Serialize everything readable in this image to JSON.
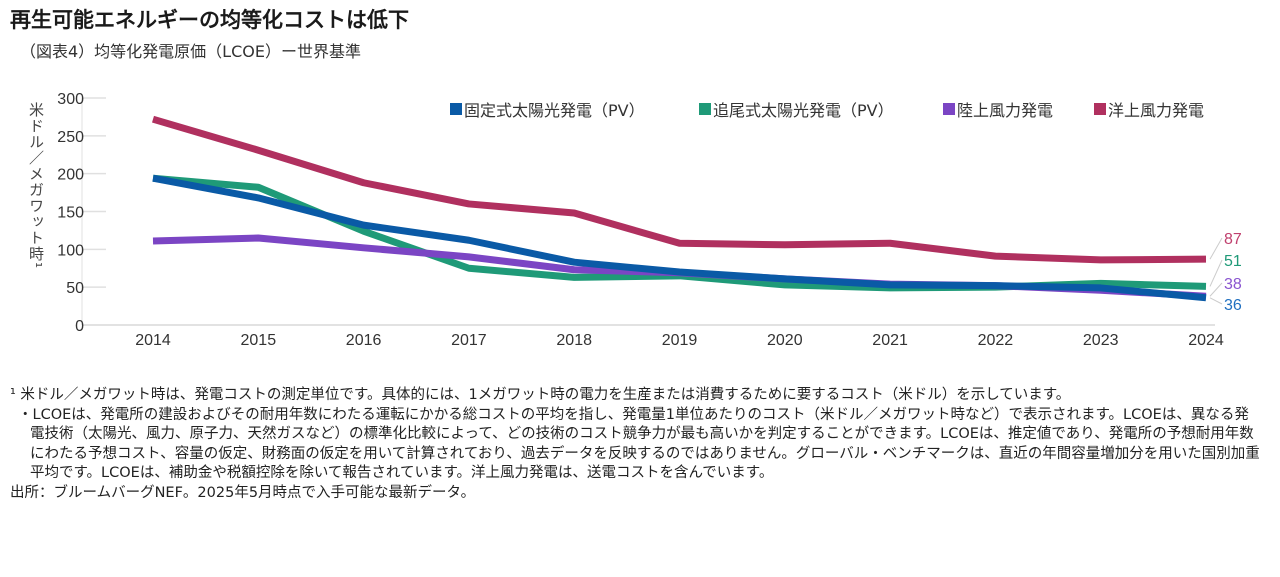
{
  "title": "再生可能エネルギーの均等化コストは低下",
  "subtitle": "（図表4）均等化発電原価（LCOE）ー世界基準",
  "chart_data": {
    "type": "line",
    "title": "",
    "ylabel": "米ドル／メガワット時¹",
    "xlabel": "",
    "ylim": [
      0,
      300
    ],
    "yticks": [
      0,
      50,
      100,
      150,
      200,
      250,
      300
    ],
    "categories": [
      "2014",
      "2015",
      "2016",
      "2017",
      "2018",
      "2019",
      "2020",
      "2021",
      "2022",
      "2023",
      "2024"
    ],
    "legend_position": "top",
    "series": [
      {
        "name": "固定式太陽光発電（PV）",
        "color": "#0a5aa6",
        "values": [
          194,
          168,
          132,
          112,
          83,
          70,
          61,
          53,
          52,
          49,
          36
        ]
      },
      {
        "name": "追尾式太陽光発電（PV）",
        "color": "#1f9a78",
        "values": [
          194,
          182,
          124,
          75,
          63,
          65,
          53,
          49,
          50,
          55,
          51
        ]
      },
      {
        "name": "陸上風力発電",
        "color": "#7b45c4",
        "values": [
          111,
          115,
          102,
          90,
          73,
          69,
          61,
          54,
          52,
          46,
          38
        ]
      },
      {
        "name": "洋上風力発電",
        "color": "#b0305f",
        "values": [
          272,
          231,
          188,
          160,
          148,
          108,
          106,
          108,
          91,
          86,
          87
        ]
      }
    ],
    "end_labels": [
      {
        "text": "87",
        "color": "#c0406e"
      },
      {
        "text": "51",
        "color": "#1f9a78"
      },
      {
        "text": "38",
        "color": "#8a55d0"
      },
      {
        "text": "36",
        "color": "#1f6fc0"
      }
    ]
  },
  "notes": {
    "n1": "¹ 米ドル／メガワット時は、発電コストの測定単位です。具体的には、1メガワット時の電力を生産または消費するために要するコスト（米ドル）を示しています。",
    "n2": "・LCOEは、発電所の建設およびその耐用年数にわたる運転にかかる総コストの平均を指し、発電量1単位あたりのコスト（米ドル／メガワット時など）で表示されます。LCOEは、異なる発電技術（太陽光、風力、原子力、天然ガスなど）の標準化比較によって、どの技術のコスト競争力が最も高いかを判定することができます。LCOEは、推定値であり、発電所の予想耐用年数にわたる予想コスト、容量の仮定、財務面の仮定を用いて計算されており、過去データを反映するのではありません。グローバル・ベンチマークは、直近の年間容量増加分を用いた国別加重平均です。LCOEは、補助金や税額控除を除いて報告されています。洋上風力発電は、送電コストを含んでいます。",
    "source": "出所：ブルームバーグNEF。2025年5月時点で入手可能な最新データ。"
  }
}
